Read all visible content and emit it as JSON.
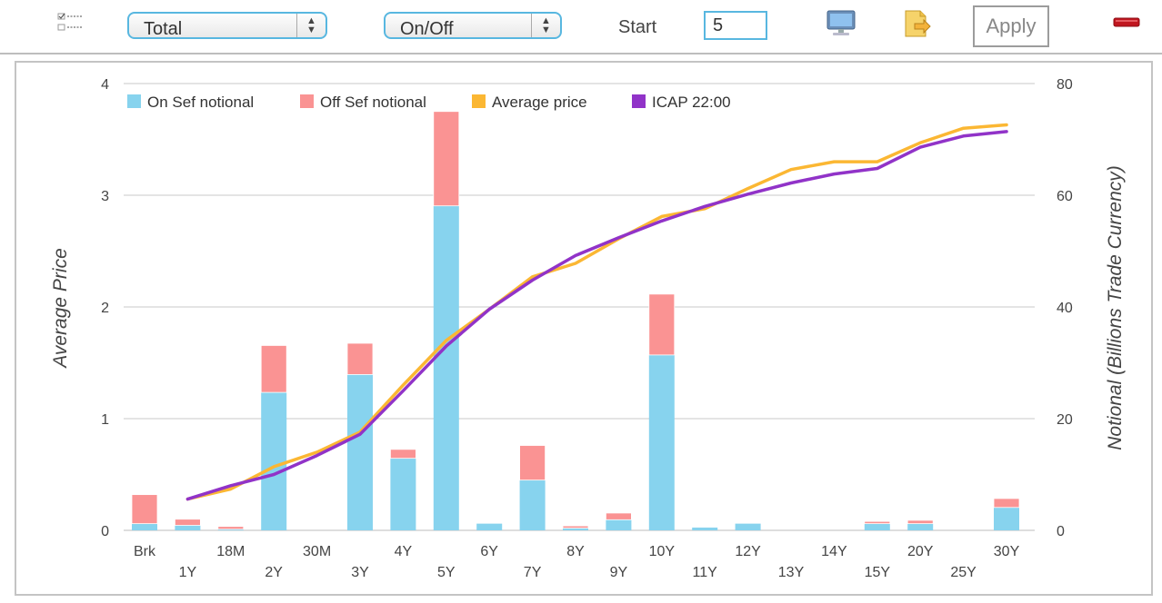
{
  "toolbar": {
    "view_select": "Total",
    "mode_select": "On/Off",
    "start_label": "Start",
    "start_value": "5",
    "apply_label": "Apply",
    "icons": [
      "checklist-icon",
      "monitor-icon",
      "export-icon",
      "remove-icon"
    ]
  },
  "chart_data": {
    "type": "bar",
    "categories": [
      "Brk",
      "1Y",
      "18M",
      "2Y",
      "30M",
      "3Y",
      "4Y",
      "5Y",
      "6Y",
      "7Y",
      "8Y",
      "9Y",
      "10Y",
      "11Y",
      "12Y",
      "13Y",
      "14Y",
      "15Y",
      "20Y",
      "25Y",
      "30Y"
    ],
    "ylabel_left": "Average Price",
    "ylabel_right": "Notional (Billions Trade Currency)",
    "ylim_left": [
      0,
      4
    ],
    "ylim_right": [
      0,
      80
    ],
    "yticks_left": [
      "0",
      "1",
      "2",
      "3",
      "4"
    ],
    "yticks_right": [
      "0",
      "20",
      "40",
      "60",
      "80"
    ],
    "grid": true,
    "legend_position": "top-left",
    "colors": {
      "on_sef": "#87d3ee",
      "off_sef": "#fa9393",
      "avg_price": "#fbb733",
      "icap": "#9133c8"
    },
    "series": [
      {
        "name": "On Sef notional",
        "axis": "right",
        "stack": "notional",
        "values": [
          1.2,
          0.9,
          0.2,
          24.7,
          0,
          27.9,
          12.9,
          58.1,
          1.2,
          9.0,
          0.4,
          1.9,
          31.4,
          0.5,
          1.2,
          0,
          0,
          1.2,
          1.2,
          0,
          4.1
        ]
      },
      {
        "name": "Off Sef notional",
        "axis": "right",
        "stack": "notional",
        "values": [
          5.2,
          1.1,
          0.5,
          8.4,
          0,
          5.6,
          1.6,
          16.9,
          0,
          6.2,
          0.4,
          1.2,
          10.9,
          0,
          0,
          0,
          0,
          0.4,
          0.6,
          0,
          1.6
        ]
      },
      {
        "name": "Average price",
        "axis": "left",
        "type": "line",
        "values": [
          null,
          0.28,
          0.37,
          0.57,
          0.7,
          0.88,
          1.3,
          1.7,
          1.98,
          2.27,
          2.39,
          2.61,
          2.81,
          2.88,
          3.06,
          3.23,
          3.3,
          3.3,
          3.47,
          3.6,
          3.63
        ]
      },
      {
        "name": "ICAP 22:00",
        "axis": "left",
        "type": "line",
        "values": [
          null,
          0.28,
          0.4,
          0.5,
          0.67,
          0.86,
          1.25,
          1.65,
          1.98,
          2.24,
          2.46,
          2.62,
          2.77,
          2.9,
          3.01,
          3.11,
          3.19,
          3.24,
          3.43,
          3.53,
          3.57
        ]
      }
    ]
  }
}
